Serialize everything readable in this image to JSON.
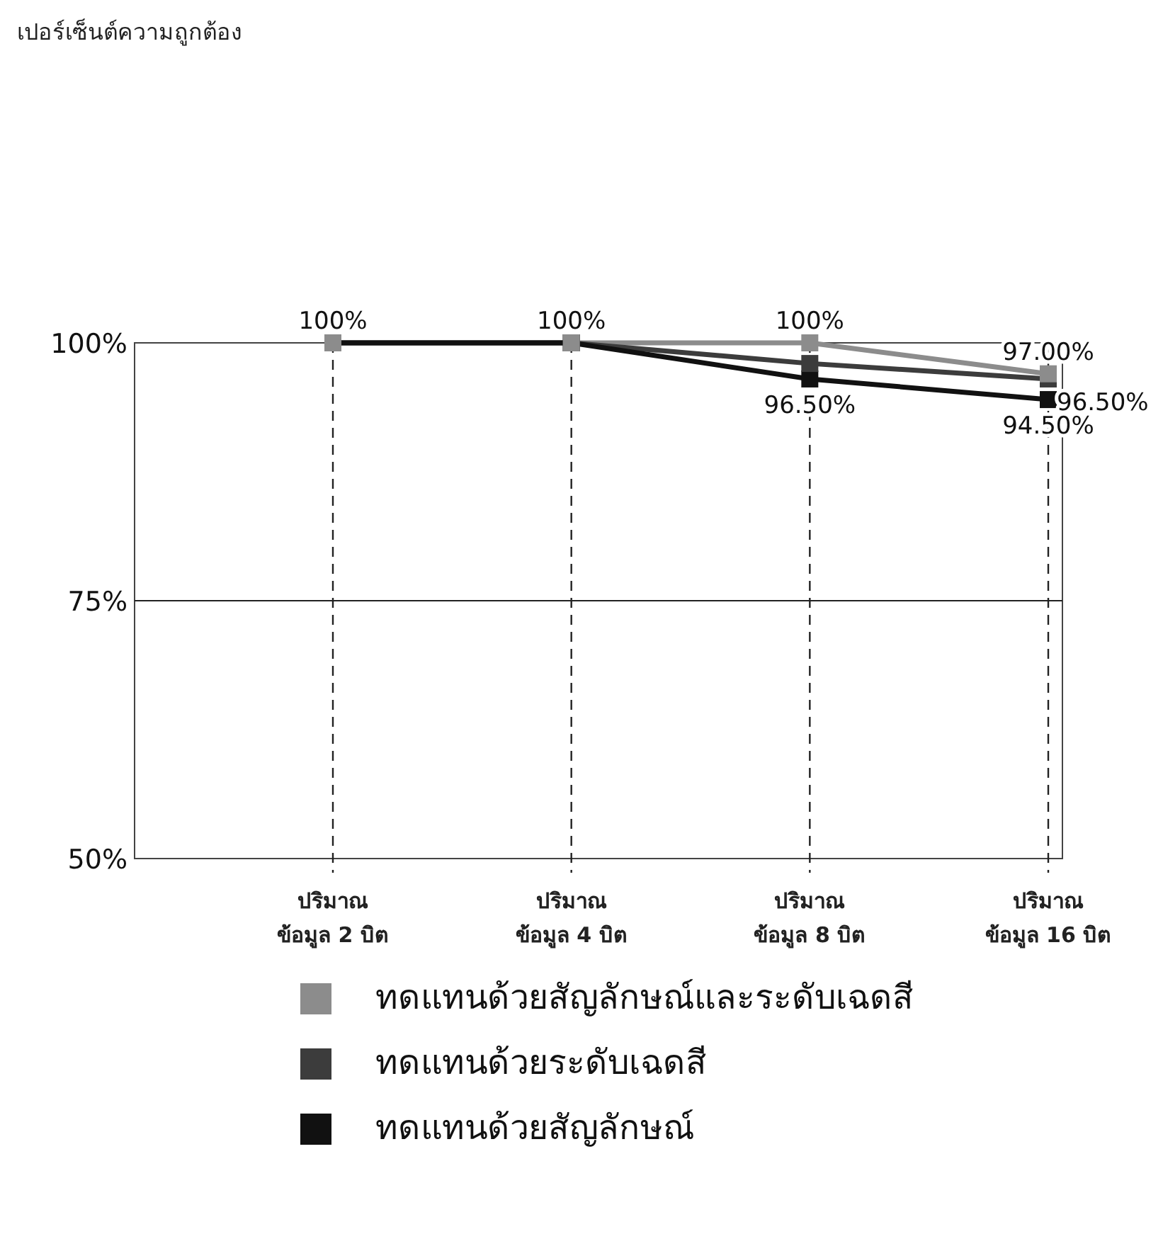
{
  "chart_data": {
    "type": "line",
    "annotations": [
      "เปอร์เซ็นต์ความถูกต้อง"
    ],
    "ref_lines": [
      {
        "axis": "y",
        "value": 75,
        "color": "#222222"
      }
    ],
    "categories": [
      "ปริมาณ\nข้อมูล 2 บิต",
      "ปริมาณ\nข้อมูล 4 บิต",
      "ปริมาณ\nข้อมูล 8 บิต",
      "ปริมาณ\nข้อมูล 16 บิต"
    ],
    "series": [
      {
        "name": "ทดแทนด้วยสัญลักษณ์และระดับเฉดสี",
        "color": "#8c8c8c",
        "values": [
          100,
          100,
          100,
          97
        ],
        "value_labels": [
          "100%",
          "100%",
          "100%",
          "97.00%"
        ]
      },
      {
        "name": "ทดแทนด้วยระดับเฉดสี",
        "color": "#3c3c3c",
        "values": [
          100,
          100,
          98,
          96.5
        ],
        "value_labels": [
          null,
          null,
          null,
          "96.50%"
        ]
      },
      {
        "name": "ทดแทนด้วยสัญลักษณ์",
        "color": "#111111",
        "values": [
          100,
          100,
          96.5,
          94.5
        ],
        "value_labels": [
          null,
          null,
          "96.50%",
          "94.50%"
        ]
      }
    ],
    "ylim": [
      50,
      100
    ],
    "yticks": [
      {
        "value": 50,
        "label": "50%"
      },
      {
        "value": 75,
        "label": "75%"
      },
      {
        "value": 100,
        "label": "100%"
      }
    ],
    "grid": "x",
    "legend": "bottom",
    "marker": "square",
    "line_style": "solid"
  }
}
